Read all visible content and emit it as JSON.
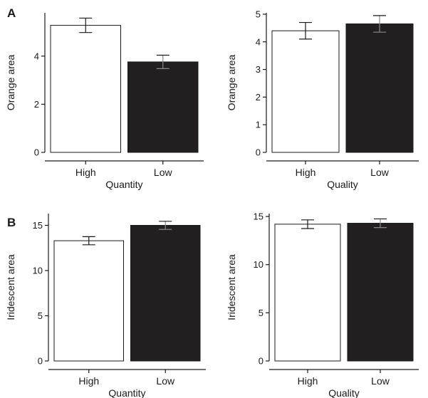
{
  "panel_labels": [
    "A",
    "B"
  ],
  "colors": {
    "high_fill": "#ffffff",
    "low_fill": "#231f20",
    "stroke": "#1a1a1a"
  },
  "chart_data": [
    {
      "type": "bar",
      "panel": "A",
      "categories": [
        "High",
        "Low"
      ],
      "values": [
        5.28,
        3.76
      ],
      "errors": [
        0.3,
        0.28
      ],
      "xlabel": "Quantity",
      "ylabel": "Orange area",
      "ylim": [
        0,
        5.8
      ],
      "yticks": [
        0,
        2,
        4
      ],
      "grid": false
    },
    {
      "type": "bar",
      "categories": [
        "High",
        "Low"
      ],
      "values": [
        4.4,
        4.65
      ],
      "errors": [
        0.3,
        0.3
      ],
      "xlabel": "Quality",
      "ylabel": "Orange area",
      "ylim": [
        0,
        5.05
      ],
      "yticks": [
        0,
        1,
        2,
        3,
        4,
        5
      ],
      "grid": false
    },
    {
      "type": "bar",
      "panel": "B",
      "categories": [
        "High",
        "Low"
      ],
      "values": [
        13.3,
        15.0
      ],
      "errors": [
        0.45,
        0.45
      ],
      "xlabel": "Quantity",
      "ylabel": "Iridescent area",
      "ylim": [
        0,
        16.3
      ],
      "yticks": [
        0,
        5,
        10,
        15
      ],
      "grid": false
    },
    {
      "type": "bar",
      "categories": [
        "High",
        "Low"
      ],
      "values": [
        14.2,
        14.3
      ],
      "errors": [
        0.45,
        0.45
      ],
      "xlabel": "Quality",
      "ylabel": "Iridescent area",
      "ylim": [
        0,
        15.3
      ],
      "yticks": [
        0,
        5,
        10,
        15
      ],
      "grid": false
    }
  ]
}
